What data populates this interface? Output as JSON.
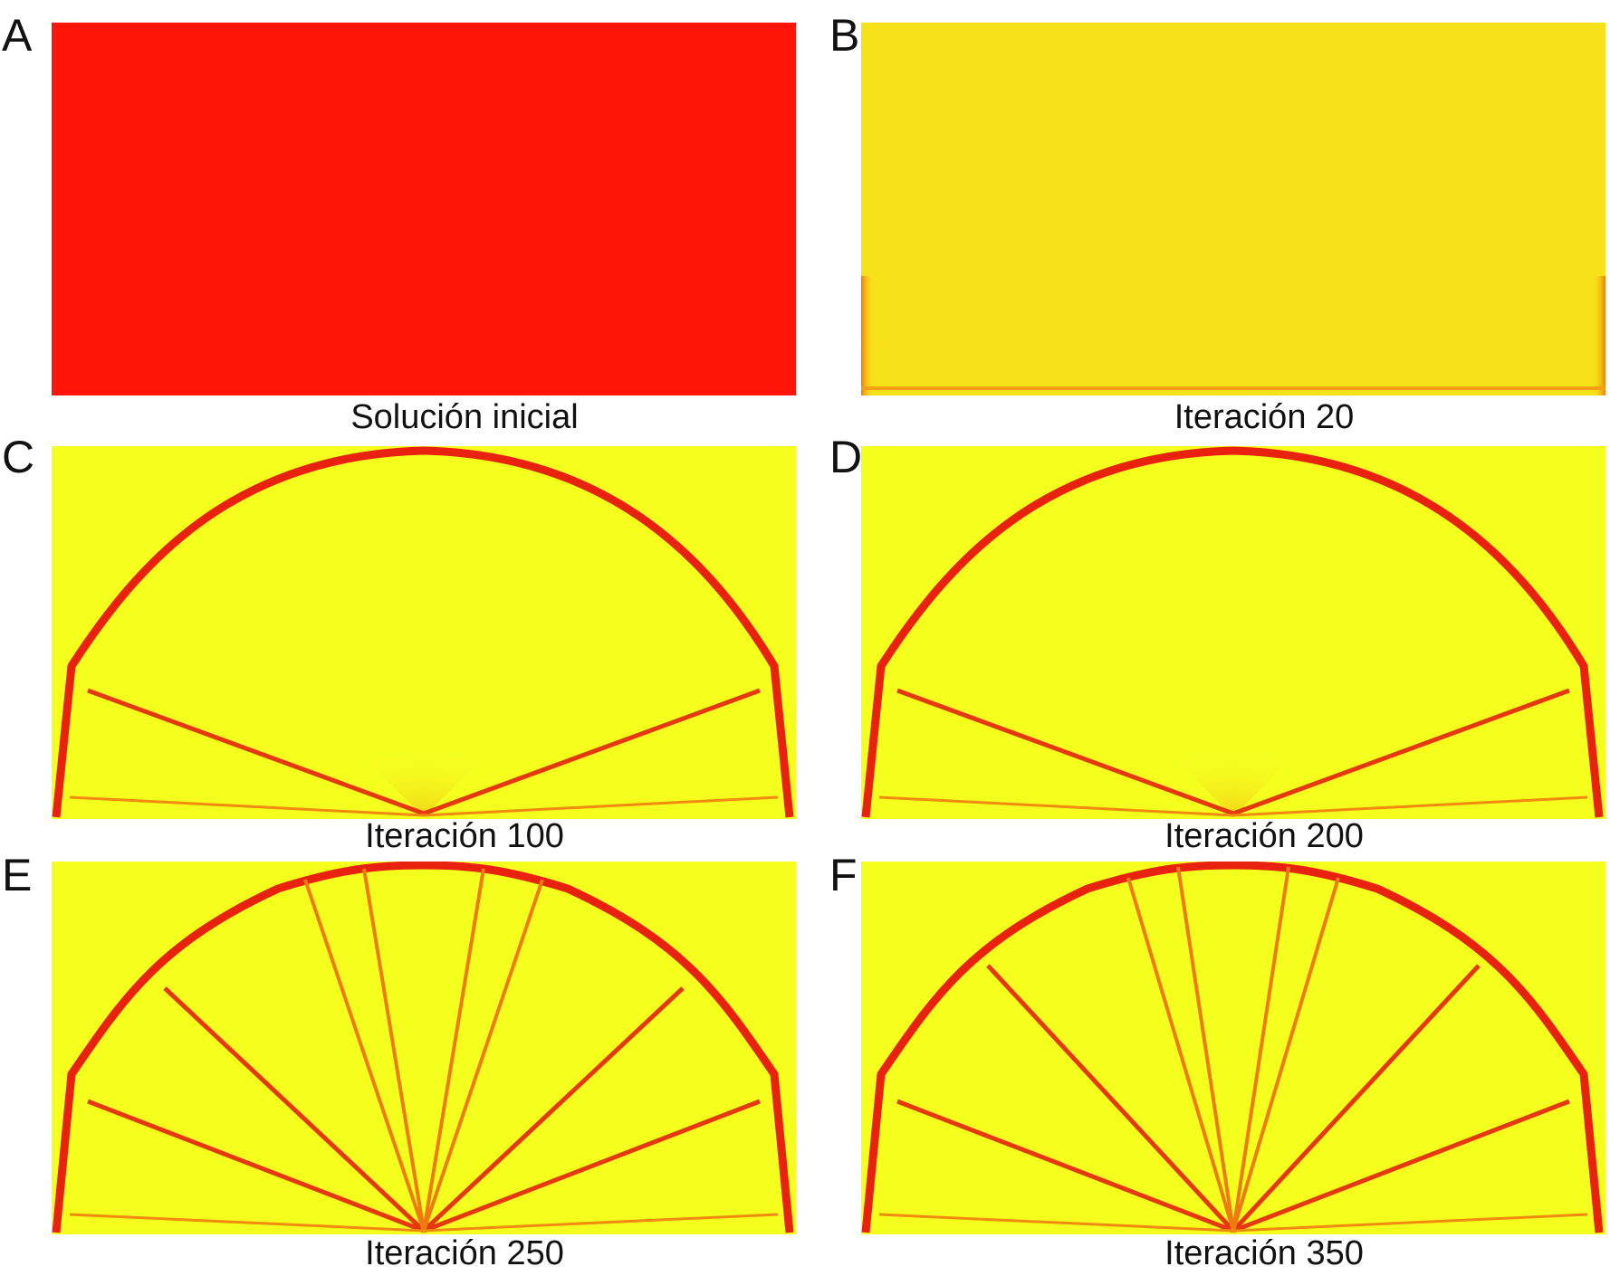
{
  "panels": [
    {
      "letter": "A",
      "caption": "Solución inicial",
      "stage": "initial"
    },
    {
      "letter": "B",
      "caption": "Iteración 20",
      "stage": "iter20"
    },
    {
      "letter": "C",
      "caption": "Iteración 100",
      "stage": "arch"
    },
    {
      "letter": "D",
      "caption": "Iteración 200",
      "stage": "arch"
    },
    {
      "letter": "E",
      "caption": "Iteración 250",
      "stage": "full"
    },
    {
      "letter": "F",
      "caption": "Iteración 350",
      "stage": "full"
    }
  ],
  "colors": {
    "initial_fill": "#ff1408",
    "iter20_fill": "#f7e219",
    "background": "#f5ff1e",
    "member": "#e8220e",
    "thin_member": "#f08a10",
    "faint": "#f4c014"
  }
}
